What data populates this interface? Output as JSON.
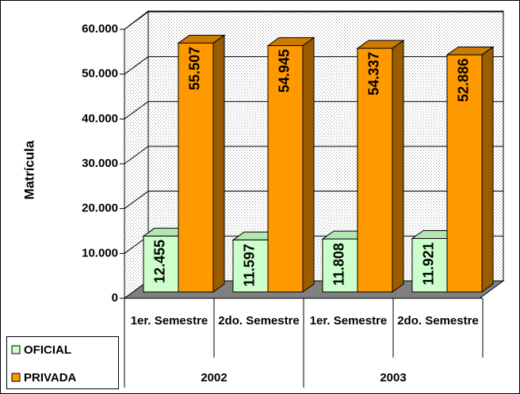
{
  "chart_data": {
    "type": "bar3d",
    "y_label": "Matrícula",
    "categories": [
      "1er. Semestre",
      "2do. Semestre",
      "1er. Semestre",
      "2do. Semestre"
    ],
    "group_labels": [
      "2002",
      "2003"
    ],
    "series": [
      {
        "name": "OFICIAL",
        "color": "#ccffcc",
        "values": [
          12455,
          11597,
          11808,
          11921
        ],
        "value_labels": [
          "12.455",
          "11.597",
          "11.808",
          "11.921"
        ]
      },
      {
        "name": "PRIVADA",
        "color": "#ff9900",
        "values": [
          55507,
          54945,
          54337,
          52886
        ],
        "value_labels": [
          "55.507",
          "54.945",
          "54.337",
          "52.886"
        ]
      }
    ],
    "ylim": [
      0,
      60000
    ],
    "yticks": [
      0,
      {
        "value": 10000,
        "label": "10.000"
      },
      {
        "value": 20000,
        "label": "20.000"
      },
      {
        "value": 30000,
        "label": "30.000"
      },
      {
        "value": 40000,
        "label": "40.000"
      },
      {
        "value": 50000,
        "label": "50.000"
      },
      {
        "value": 60000,
        "label": "60.000"
      }
    ],
    "grid": true,
    "legend": "bottom-left"
  }
}
